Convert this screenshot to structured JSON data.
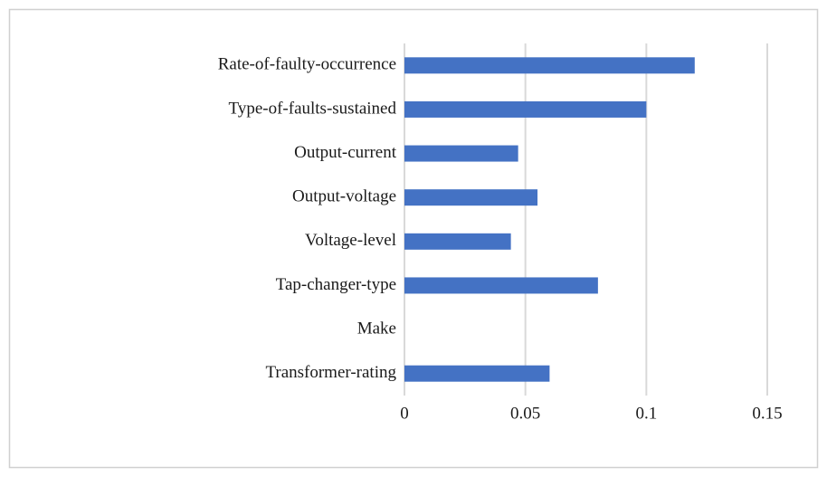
{
  "chart_data": {
    "type": "bar",
    "orientation": "horizontal",
    "categories": [
      "Rate-of-faulty-occurrence",
      "Type-of-faults-sustained",
      "Output-current",
      "Output-voltage",
      "Voltage-level",
      "Tap-changer-type",
      "Make",
      "Transformer-rating"
    ],
    "values": [
      0.12,
      0.1,
      0.047,
      0.055,
      0.044,
      0.08,
      0,
      0.06
    ],
    "color": "#4472c4",
    "xlim": [
      0,
      0.15
    ],
    "xticks": [
      0,
      0.05,
      0.1,
      0.15
    ],
    "grid": true
  }
}
